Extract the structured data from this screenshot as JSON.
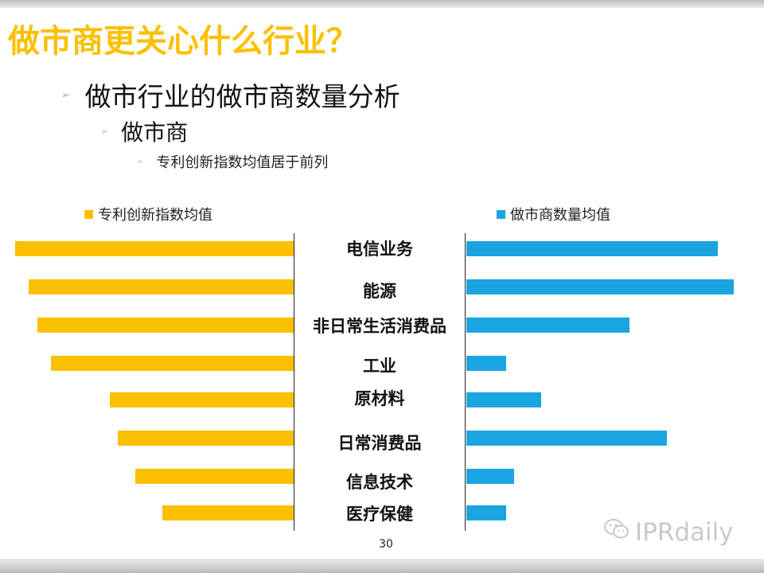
{
  "slide": {
    "title": "做市商更关心什么行业？",
    "bullets": {
      "level1": "做市行业的做市商数量分析",
      "level2": "做市商",
      "level3": "专利创新指数均值居于前列"
    },
    "page_number": "30",
    "watermark": "IPRdaily",
    "colors": {
      "title": "#FBC000",
      "patent_series": "#FBC000",
      "market_maker_series": "#1AA5E0"
    }
  },
  "chart_data": {
    "type": "bar",
    "orientation": "horizontal-butterfly",
    "categories": [
      "电信业务",
      "能源",
      "非日常生活消费品",
      "工业",
      "原材料",
      "日常消费品",
      "信息技术",
      "医疗保健"
    ],
    "series": [
      {
        "name": "专利创新指数均值",
        "side": "left",
        "color": "#FBC000",
        "values": [
          100,
          95,
          92,
          87,
          66,
          63,
          57,
          47
        ]
      },
      {
        "name": "做市商数量均值",
        "side": "right",
        "color": "#1AA5E0",
        "values": [
          94,
          100,
          61,
          15,
          28,
          75,
          18,
          15
        ]
      }
    ],
    "xlim": [
      0,
      100
    ],
    "legend": [
      "专利创新指数均值",
      "做市商数量均值"
    ],
    "legend_position": "top",
    "grid": false
  }
}
